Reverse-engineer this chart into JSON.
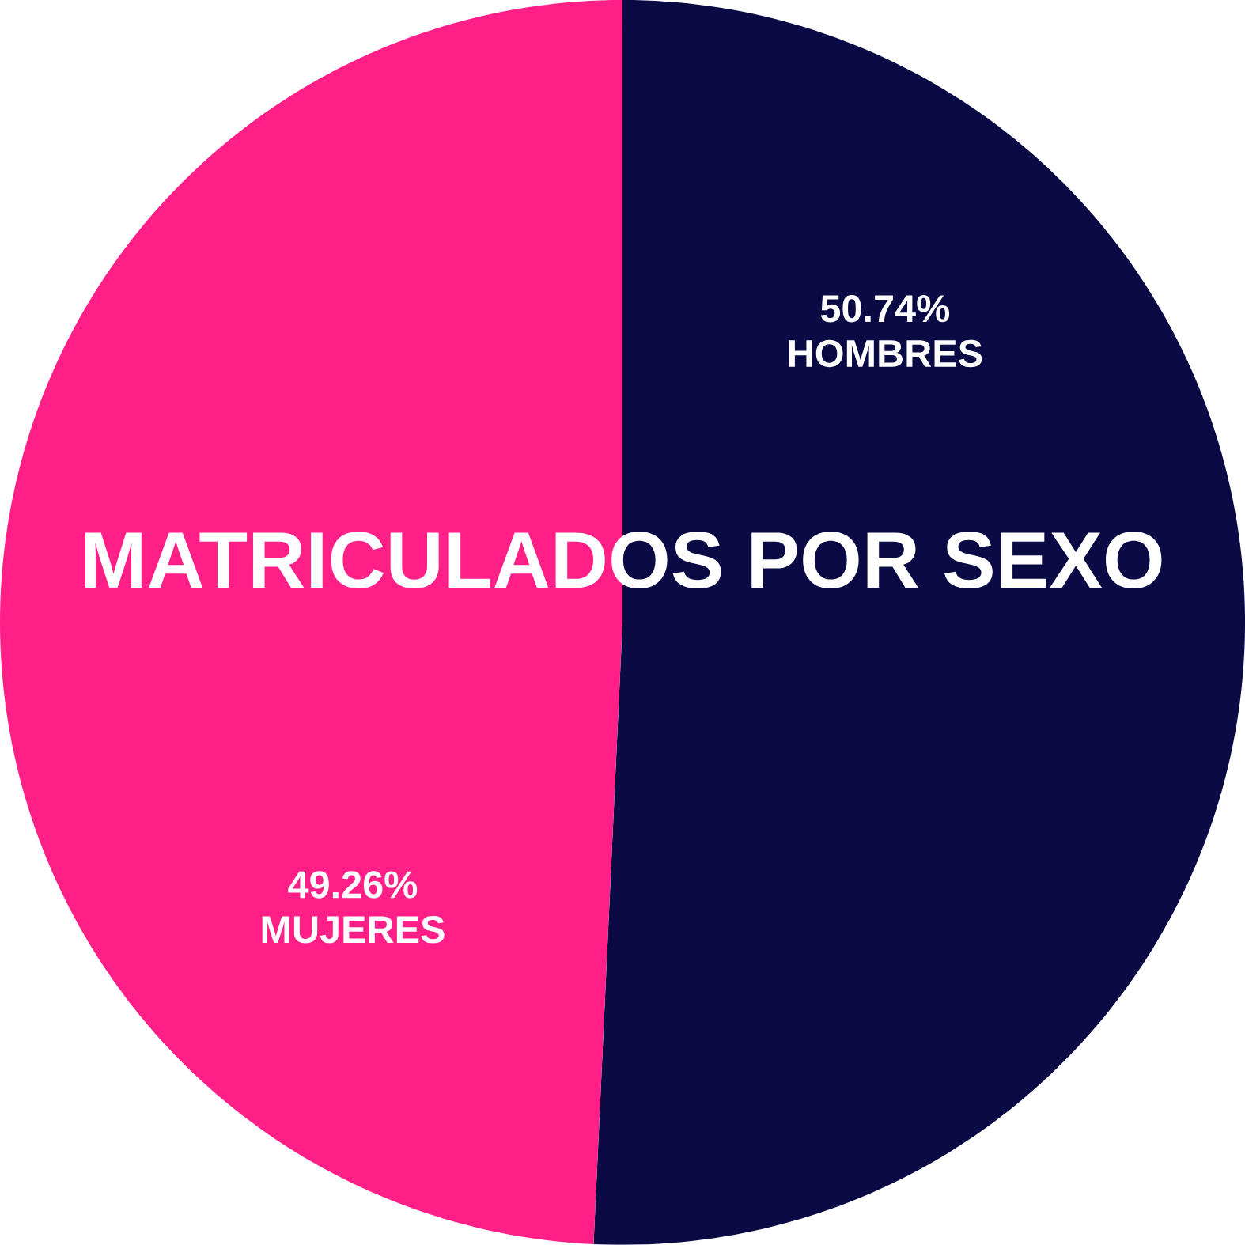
{
  "chart_data": {
    "type": "pie",
    "title": "MATRICULADOS POR SEXO",
    "categories": [
      "HOMBRES",
      "MUJERES"
    ],
    "values": [
      50.74,
      49.26
    ],
    "value_labels": [
      "50.74%",
      "49.26%"
    ],
    "colors": [
      "#0a0a45",
      "#ff1f87"
    ]
  }
}
